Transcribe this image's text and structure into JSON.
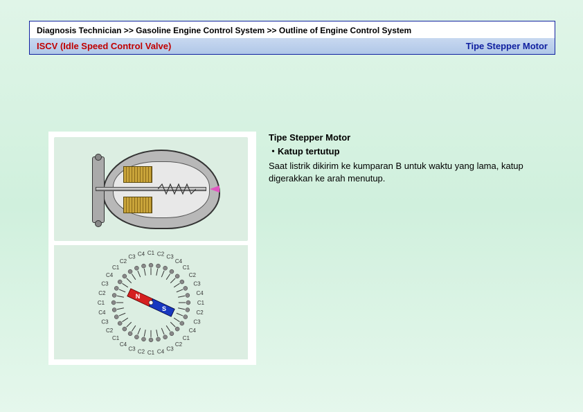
{
  "header": {
    "breadcrumb": "Diagnosis Technician >> Gasoline Engine Control System  >> Outline of Engine Control System",
    "title_left": "ISCV (Idle Speed Control Valve)",
    "title_right": "Tipe Stepper Motor"
  },
  "content": {
    "heading": "Tipe Stepper Motor",
    "bullet": "・Katup tertutup",
    "body": "Saat listrik dikirim ke kumparan B untuk waktu yang lama, katup digerakkan ke arah menutup."
  },
  "diagram": {
    "type": "infographic",
    "background_color": "#dceee2",
    "body_color": "#b8b8b8",
    "cavity_color": "#e8e8e8",
    "coil_color": "#c9a43a",
    "coil_dark": "#8a6a1a",
    "shaft_color": "#888888",
    "arrow_color": "#e055c0",
    "outline_color": "#333333"
  },
  "stepper": {
    "type": "dial",
    "outer_radius": 72,
    "inner_radius": 38,
    "tick_count": 32,
    "tick_labels": [
      "C1",
      "C2",
      "C3",
      "C4"
    ],
    "tick_color": "#333333",
    "label_fontsize": 8,
    "label_color": "#333333",
    "magnet_colors": {
      "N": "#d52020",
      "S": "#1838c0"
    },
    "magnet_angle_deg": 25,
    "center_dot_color": "#ffffff",
    "background_color": "#dceee2"
  },
  "colors": {
    "page_bg_top": "#e0f5e8",
    "page_bg_bottom": "#e5f7ec",
    "header_border": "#1020a0",
    "title_bar_bg_top": "#c8d8f0",
    "title_bar_bg_bottom": "#b0c8e8",
    "title_left_color": "#c00000",
    "title_right_color": "#1020a0"
  }
}
